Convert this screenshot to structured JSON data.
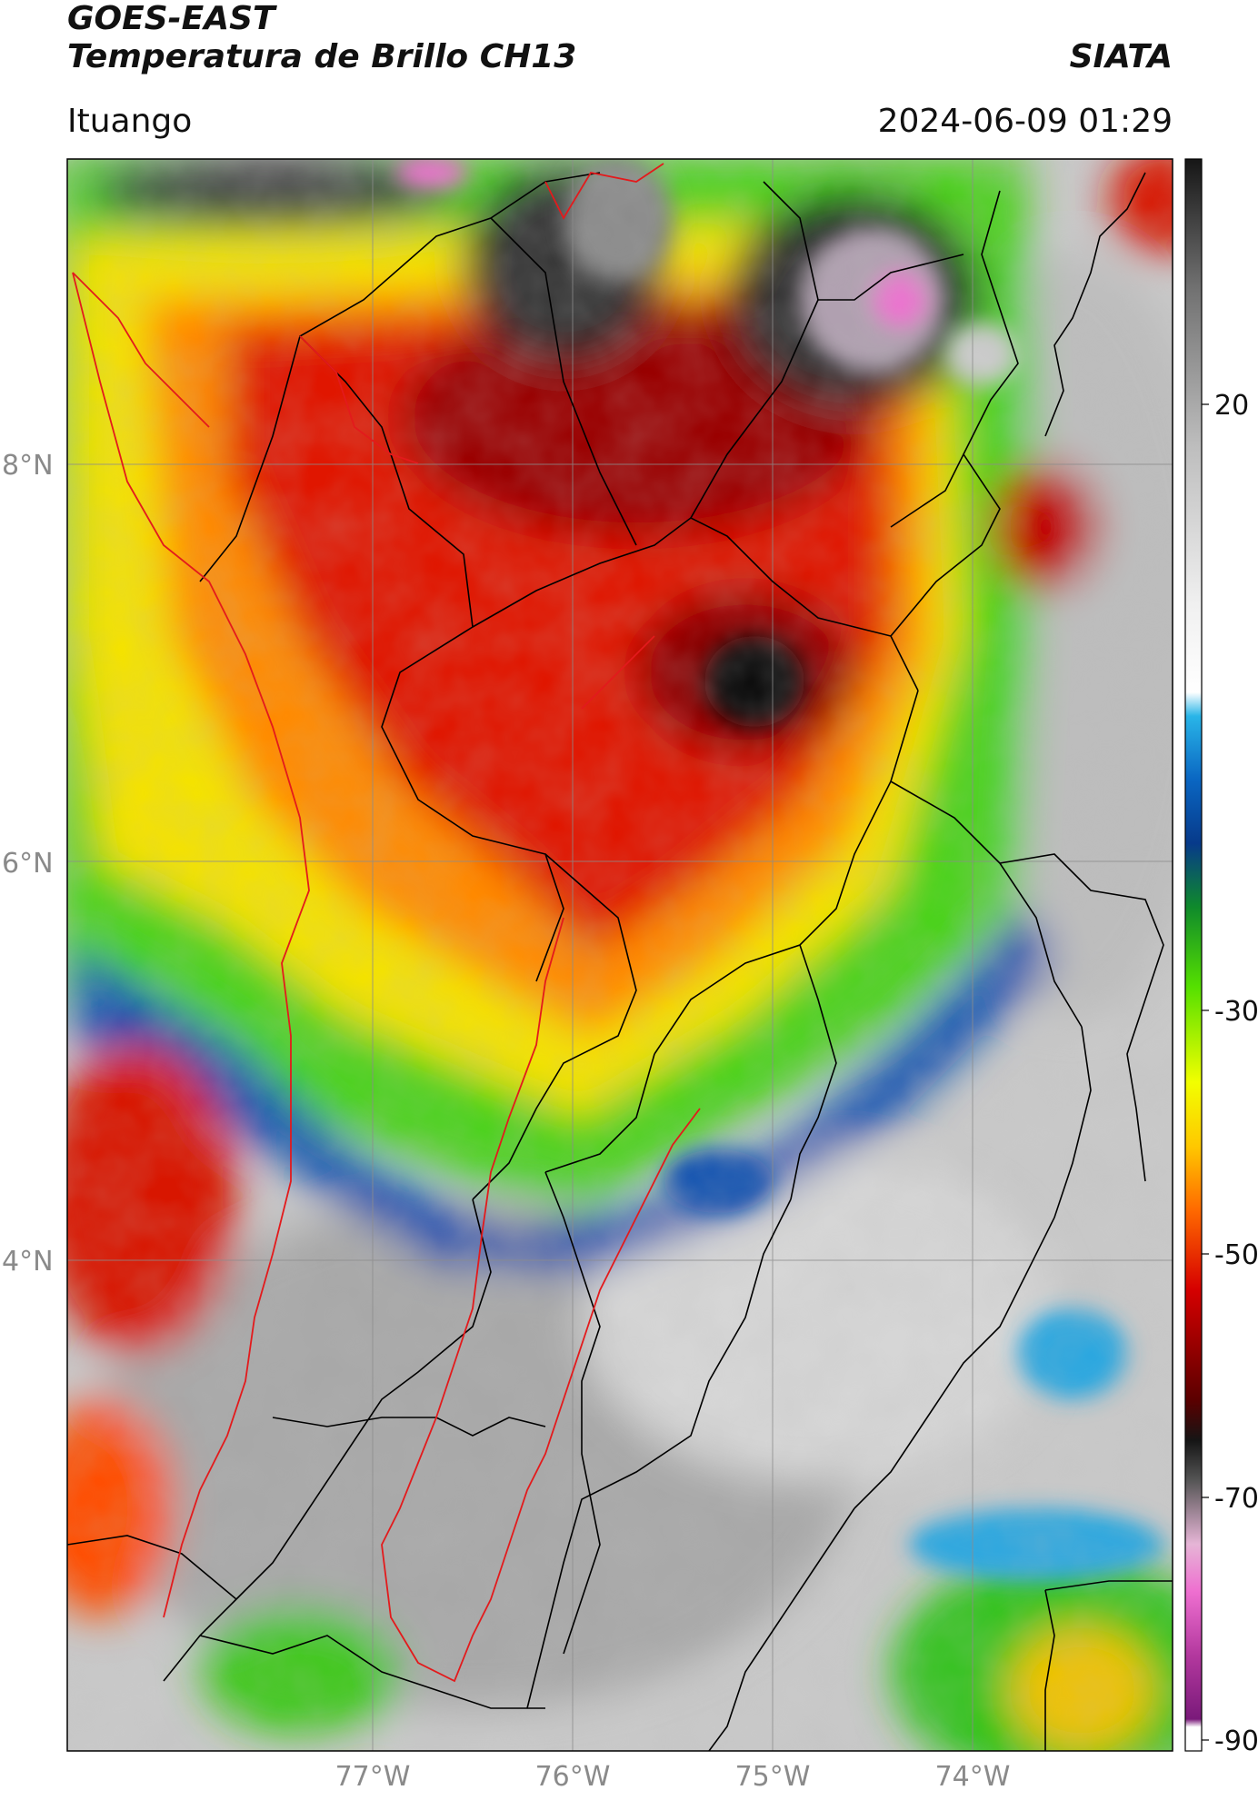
{
  "header": {
    "satellite": "GOES-EAST",
    "product": "Temperatura de Brillo CH13",
    "brand": "SIATA",
    "region": "Ituango",
    "timestamp": "2024-06-09 01:29"
  },
  "map": {
    "lat_labels": [
      "8°N",
      "6°N",
      "4°N"
    ],
    "lon_labels": [
      "77°W",
      "76°W",
      "75°W",
      "74°W"
    ],
    "gridline_color": "#8c8c8c"
  },
  "colorbar": {
    "ticks": [
      "20",
      "-30",
      "-50",
      "-70",
      "-90"
    ],
    "range": [
      -90,
      40
    ],
    "unit_hint": "°C"
  },
  "colors": {
    "boundary": "#000000",
    "highlight_boundary": "#e31a1c"
  }
}
